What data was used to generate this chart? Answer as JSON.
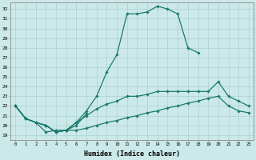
{
  "xlabel": "Humidex (Indice chaleur)",
  "background_color": "#cce9e9",
  "grid_color": "#aad0d0",
  "line_color": "#1a7a6e",
  "xlim": [
    -0.5,
    23.5
  ],
  "ylim": [
    18.5,
    32.7
  ],
  "xticks": [
    0,
    1,
    2,
    3,
    4,
    5,
    6,
    7,
    8,
    9,
    10,
    11,
    12,
    13,
    14,
    15,
    16,
    17,
    18,
    19,
    20,
    21,
    22,
    23
  ],
  "yticks": [
    19,
    20,
    21,
    22,
    23,
    24,
    25,
    26,
    27,
    28,
    29,
    30,
    31,
    32
  ],
  "curve1_x": [
    0,
    1,
    2,
    3,
    4,
    5,
    6,
    7,
    8,
    9,
    10,
    11,
    12,
    13,
    14,
    15,
    16,
    17,
    18
  ],
  "curve1_y": [
    22.0,
    20.7,
    20.3,
    20.0,
    19.3,
    19.5,
    20.3,
    21.5,
    23.0,
    25.5,
    27.3,
    31.5,
    31.5,
    31.7,
    32.3,
    32.0,
    31.5,
    28.0,
    27.5
  ],
  "curve2_x": [
    0,
    1,
    2,
    3,
    4,
    5,
    6,
    7,
    8,
    9,
    10,
    11,
    12,
    13,
    14,
    15,
    16,
    17,
    18,
    19,
    20,
    21,
    22,
    23
  ],
  "curve2_y": [
    22.0,
    20.7,
    20.3,
    20.0,
    19.3,
    19.5,
    20.3,
    21.0,
    21.7,
    22.2,
    22.5,
    23.0,
    23.0,
    23.2,
    23.5,
    23.5,
    23.5,
    23.5,
    23.5,
    23.5,
    24.5,
    23.0,
    22.5,
    22.0
  ],
  "curve3_x": [
    0,
    1,
    2,
    3,
    4,
    5,
    6,
    7,
    8,
    9,
    10,
    11,
    12,
    13,
    14,
    15,
    16,
    17,
    18,
    19,
    20,
    21,
    22,
    23
  ],
  "curve3_y": [
    22.0,
    20.7,
    20.3,
    20.0,
    19.3,
    19.5,
    19.5,
    19.7,
    20.0,
    20.3,
    20.5,
    20.8,
    21.0,
    21.3,
    21.5,
    21.8,
    22.0,
    22.3,
    22.5,
    22.8,
    23.0,
    22.0,
    21.5,
    21.3
  ],
  "curve4_x": [
    0,
    1,
    2,
    3,
    4,
    5,
    6,
    7
  ],
  "curve4_y": [
    22.0,
    20.7,
    20.3,
    19.3,
    19.5,
    19.5,
    20.0,
    21.2
  ]
}
